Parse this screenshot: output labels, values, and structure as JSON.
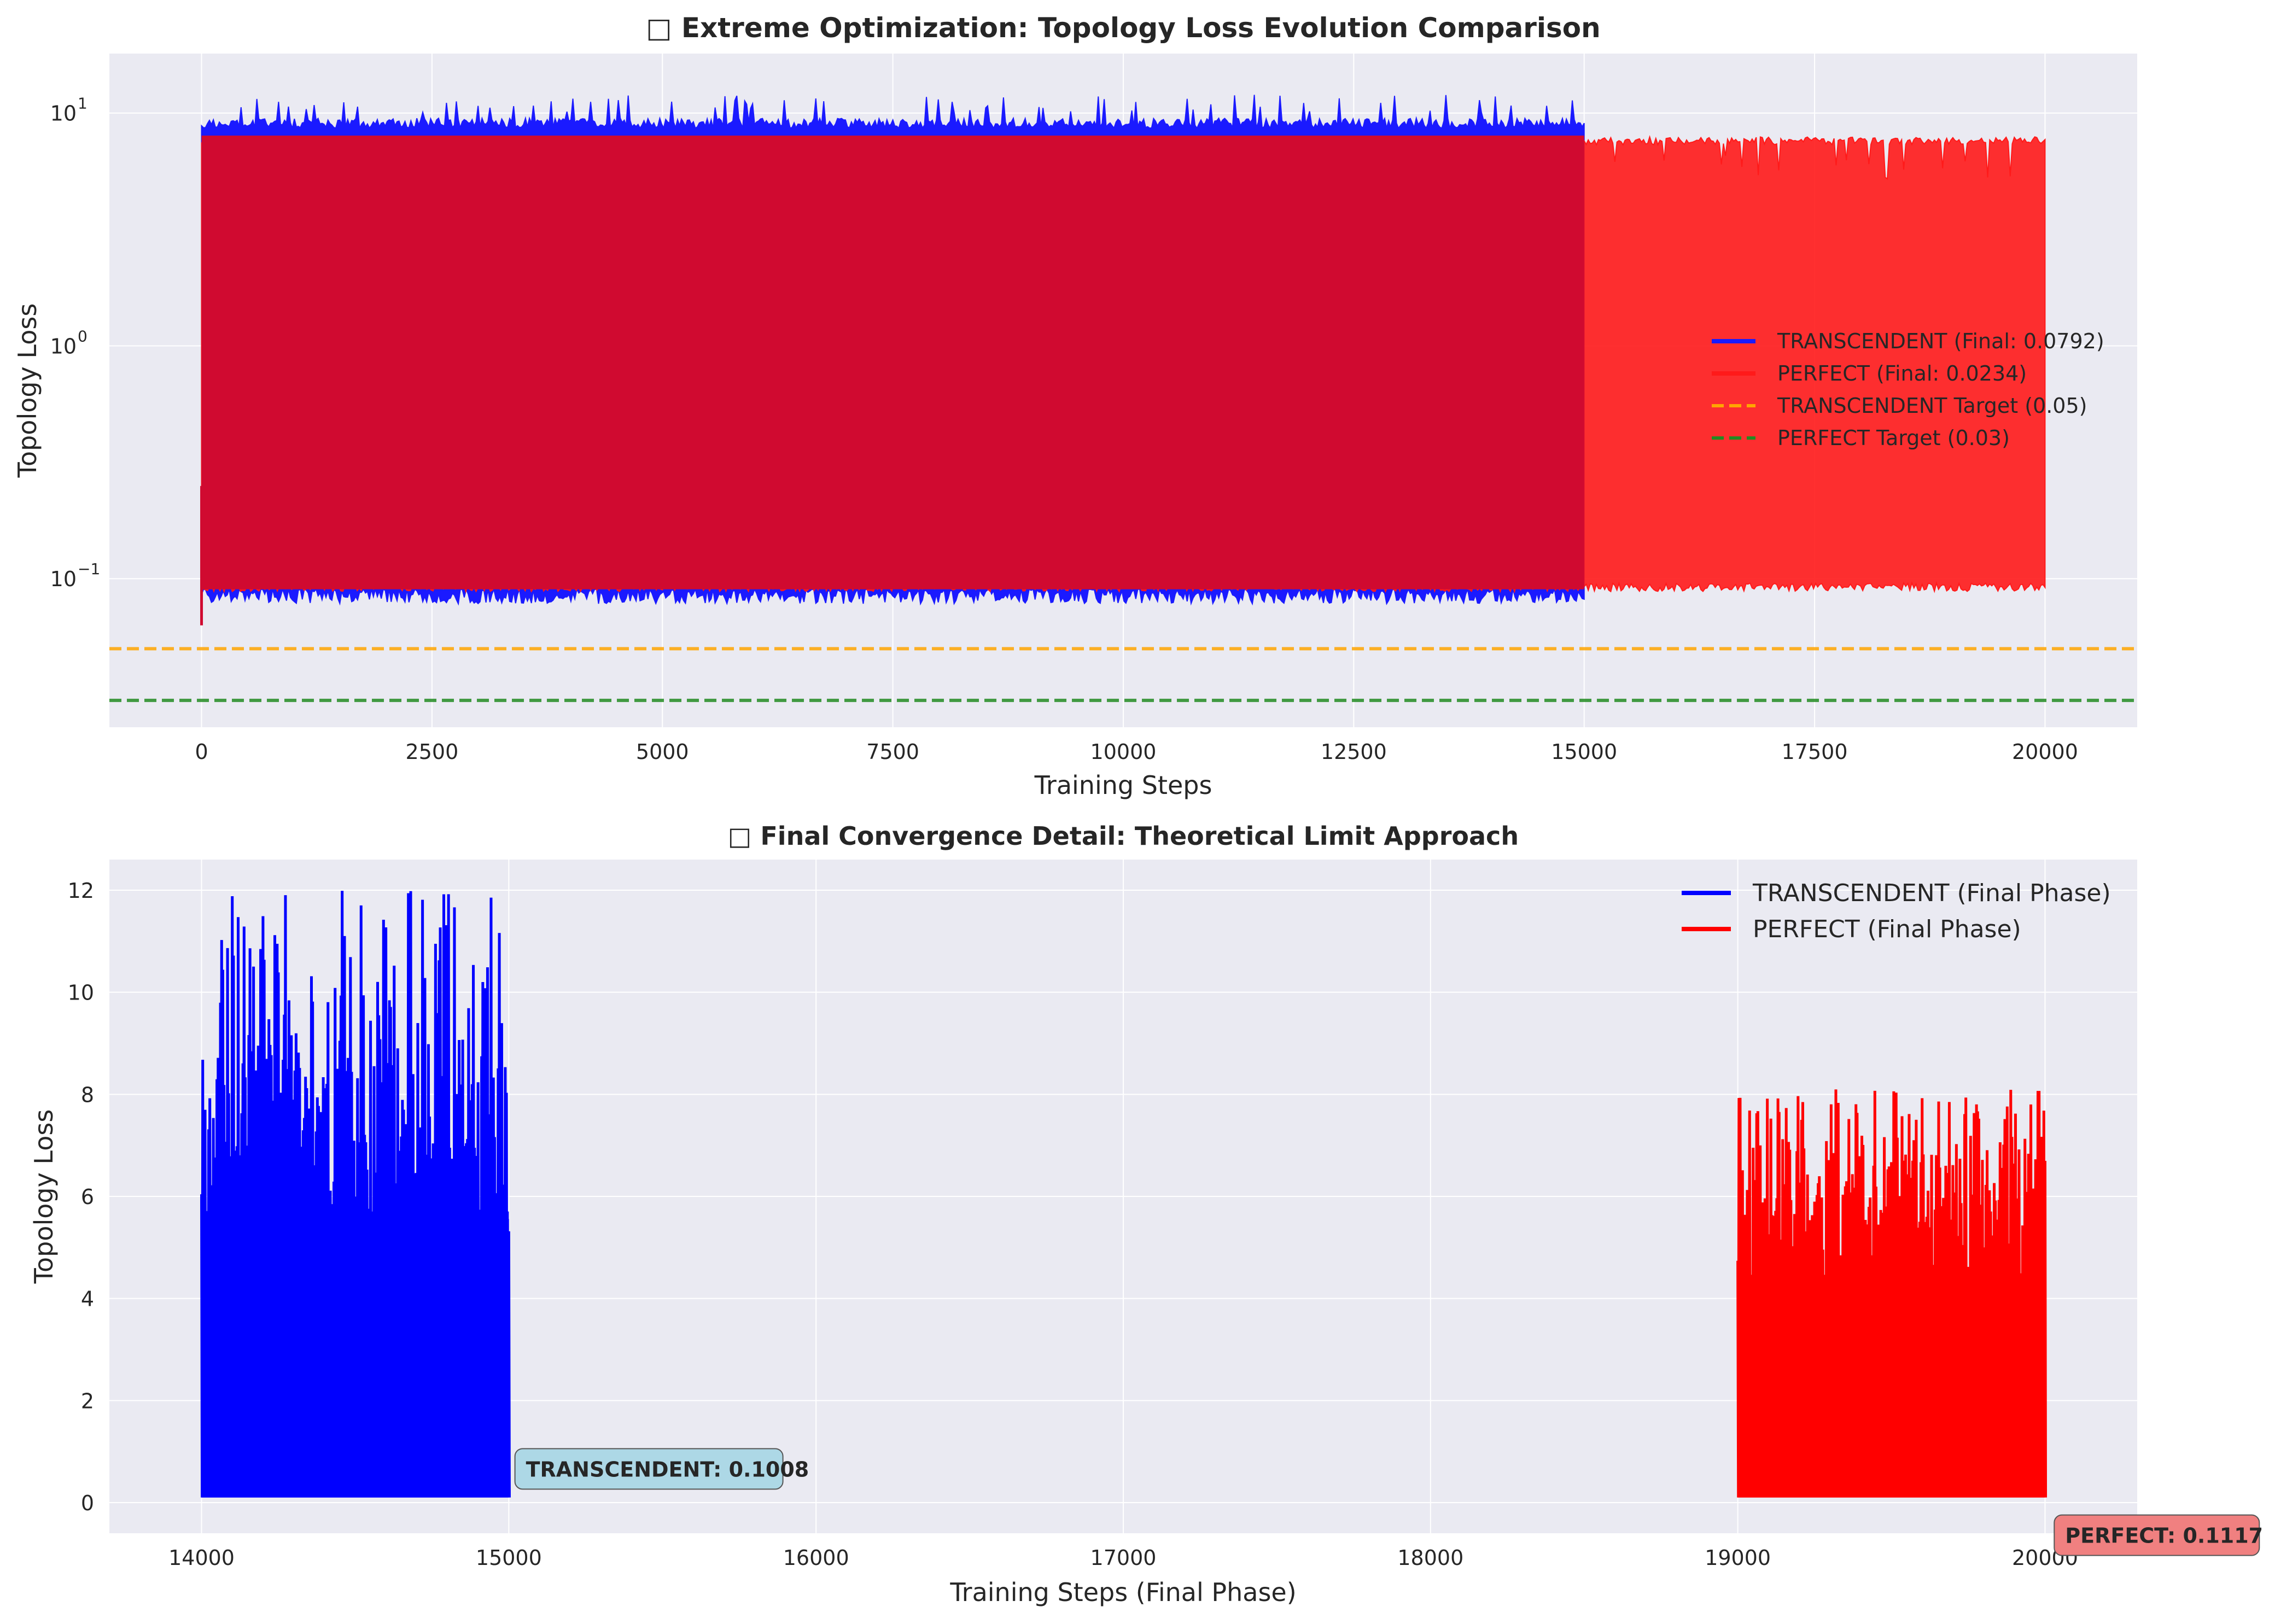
{
  "chart_data": [
    {
      "type": "line",
      "title": "□ Extreme Optimization: Topology Loss Evolution Comparison",
      "xlabel": "Training Steps",
      "ylabel": "Topology Loss",
      "yscale": "log",
      "xlim": [
        -1000,
        21000
      ],
      "ylim": [
        0.023,
        18
      ],
      "xticks": [
        "0",
        "2500",
        "5000",
        "7500",
        "10000",
        "12500",
        "15000",
        "17500",
        "20000"
      ],
      "xtick_values": [
        0,
        2500,
        5000,
        7500,
        10000,
        12500,
        15000,
        17500,
        20000
      ],
      "yticks": [
        "10",
        "10",
        "10"
      ],
      "ytick_exponents": [
        "−1",
        "0",
        "1"
      ],
      "ytick_values": [
        0.1,
        1,
        10
      ],
      "grid": true,
      "legend_position": "center-right",
      "series": [
        {
          "name": "TRANSCENDENT (Final: 0.0792)",
          "color": "#1a1aff",
          "x_range": [
            0,
            15000
          ],
          "band_low": 0.078,
          "band_high": 9.2,
          "spike_max": 12.0,
          "final": 0.0792
        },
        {
          "name": "PERFECT (Final: 0.0234)",
          "color": "#ff1a1a",
          "x_range": [
            0,
            20000
          ],
          "band_low": 0.088,
          "band_high": 7.8,
          "spike_max": 8.2,
          "final": 0.0234
        }
      ],
      "hlines": [
        {
          "name": "TRANSCENDENT Target (0.05)",
          "value": 0.05,
          "color": "#ffa500",
          "style": "dashed"
        },
        {
          "name": "PERFECT Target (0.03)",
          "value": 0.03,
          "color": "#228b22",
          "style": "dashed"
        }
      ],
      "overlap_color": "#d00a30"
    },
    {
      "type": "line",
      "title": "□ Final Convergence Detail: Theoretical Limit Approach",
      "xlabel": "Training Steps (Final Phase)",
      "ylabel": "Topology Loss",
      "xlim": [
        13700,
        20300
      ],
      "ylim": [
        -0.6,
        12.6
      ],
      "xticks": [
        "14000",
        "15000",
        "16000",
        "17000",
        "18000",
        "19000",
        "20000"
      ],
      "xtick_values": [
        14000,
        15000,
        16000,
        17000,
        18000,
        19000,
        20000
      ],
      "yticks": [
        "0",
        "2",
        "4",
        "6",
        "8",
        "10",
        "12"
      ],
      "ytick_values": [
        0,
        2,
        4,
        6,
        8,
        10,
        12
      ],
      "grid": true,
      "legend_position": "top-right",
      "series": [
        {
          "name": "TRANSCENDENT (Final Phase)",
          "color": "#0000ff",
          "x_range": [
            14000,
            15000
          ],
          "band_low": 0.1,
          "band_high": 9.3,
          "spike_max": 12.0
        },
        {
          "name": "PERFECT (Final Phase)",
          "color": "#ff0000",
          "x_range": [
            19000,
            20000
          ],
          "band_low": 0.1,
          "band_high": 7.5,
          "spike_max": 8.1
        }
      ],
      "annotations": [
        {
          "text": "TRANSCENDENT: 0.1008",
          "x": 15020,
          "y": 0.65,
          "bg": "#add8e6"
        },
        {
          "text": "PERFECT: 0.1117",
          "x": 20030,
          "y": -0.65,
          "bg": "#f08080"
        }
      ]
    }
  ]
}
